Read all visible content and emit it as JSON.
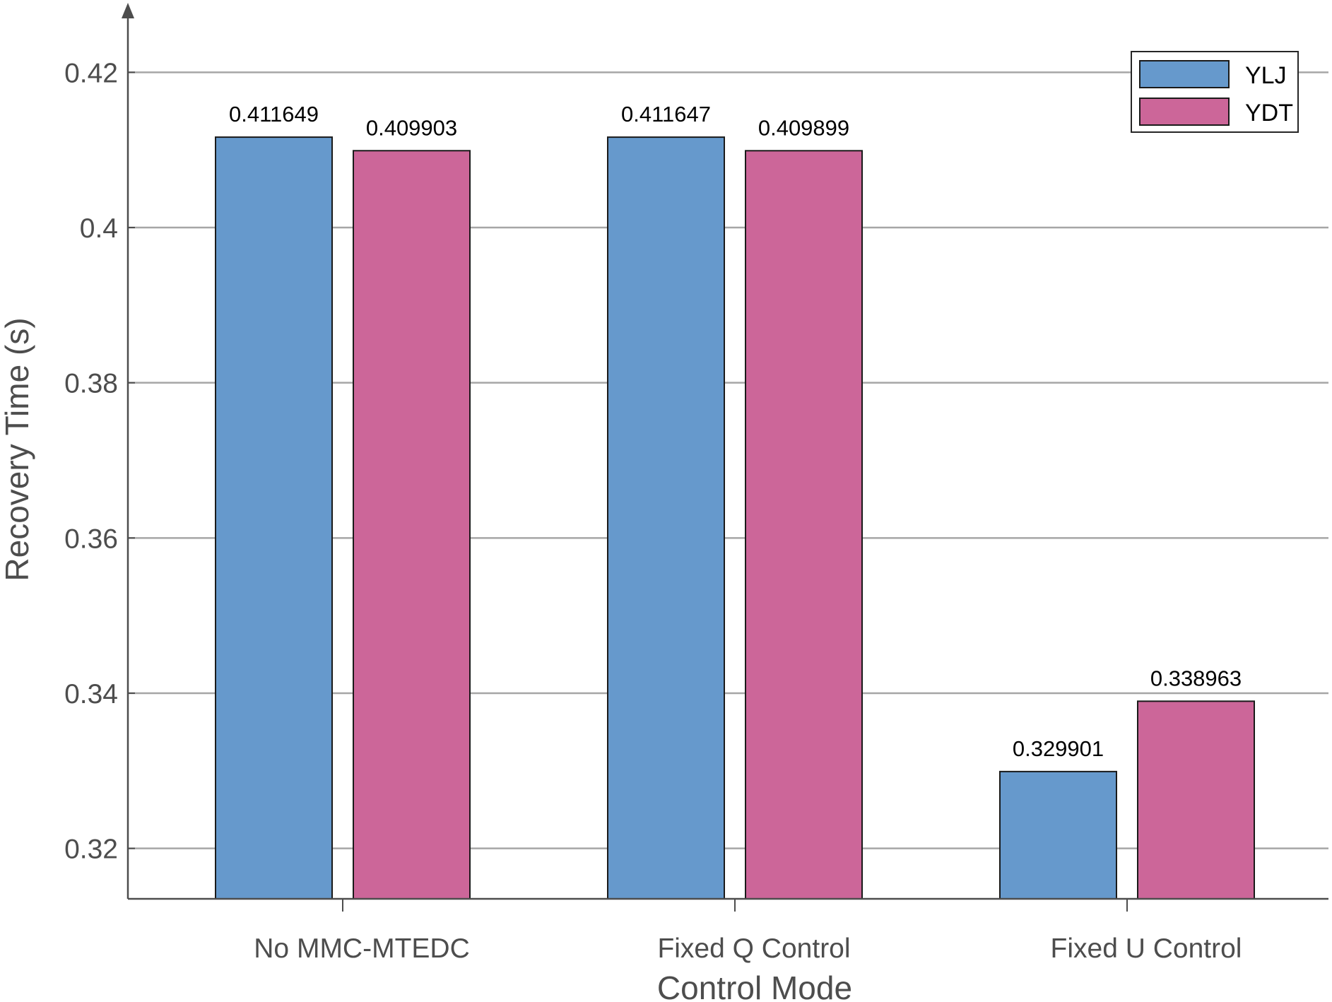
{
  "chart_data": {
    "type": "bar",
    "title": "",
    "xlabel": "Control Mode",
    "ylabel": "Recovery Time (s)",
    "categories": [
      "No MMC-MTEDC",
      "Fixed Q Control",
      "Fixed U Control"
    ],
    "series": [
      {
        "name": "YLJ",
        "color": "#6699cc",
        "values": [
          0.411649,
          0.411647,
          0.329901
        ],
        "labels": [
          "0.411649",
          "0.411647",
          "0.329901"
        ]
      },
      {
        "name": "YDT",
        "color": "#cc6699",
        "values": [
          0.409903,
          0.409899,
          0.338963
        ],
        "labels": [
          "0.409903",
          "0.409899",
          "0.338963"
        ]
      }
    ],
    "ylim": [
      0.3135,
      0.4275
    ],
    "yticks": [
      0.32,
      0.34,
      0.36,
      0.38,
      0.4,
      0.42
    ],
    "ytick_labels": [
      "0.32",
      "0.34",
      "0.36",
      "0.38",
      "0.4",
      "0.42"
    ],
    "grid": true,
    "legend_position": "top-right"
  }
}
